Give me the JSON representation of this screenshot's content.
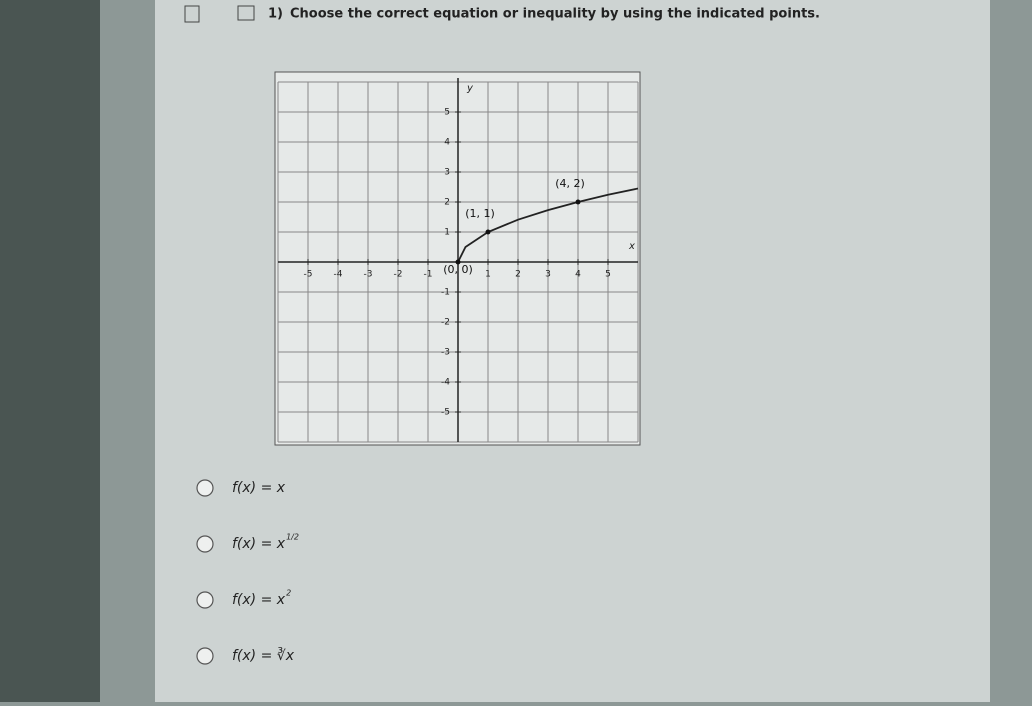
{
  "question": {
    "number": "1)",
    "text": "Choose the correct equation or inequality by using the indicated points."
  },
  "graph": {
    "xlim": [
      -6,
      6
    ],
    "ylim": [
      -6,
      6
    ],
    "xticks": [
      -5,
      -4,
      -3,
      -2,
      -1,
      1,
      2,
      3,
      4,
      5
    ],
    "yticks": [
      -5,
      -4,
      -3,
      -2,
      -1,
      1,
      2,
      3,
      4,
      5
    ],
    "xlabel": "x",
    "ylabel": "y",
    "points": [
      {
        "x": 0,
        "y": 0,
        "label": "(0, 0)"
      },
      {
        "x": 1,
        "y": 1,
        "label": "(1, 1)"
      },
      {
        "x": 4,
        "y": 2,
        "label": "(4, 2)"
      }
    ],
    "curve": {
      "x": [
        0,
        0.25,
        1,
        2,
        3,
        4,
        5,
        6
      ],
      "y": [
        0,
        0.5,
        1,
        1.41,
        1.73,
        2,
        2.24,
        2.45
      ]
    }
  },
  "options": [
    {
      "text": "f(x) = x"
    },
    {
      "text": "f(x) = x",
      "sup": "1/2"
    },
    {
      "text": "f(x) = x",
      "sup": "2"
    },
    {
      "text": "f(x) = ∛x"
    }
  ]
}
